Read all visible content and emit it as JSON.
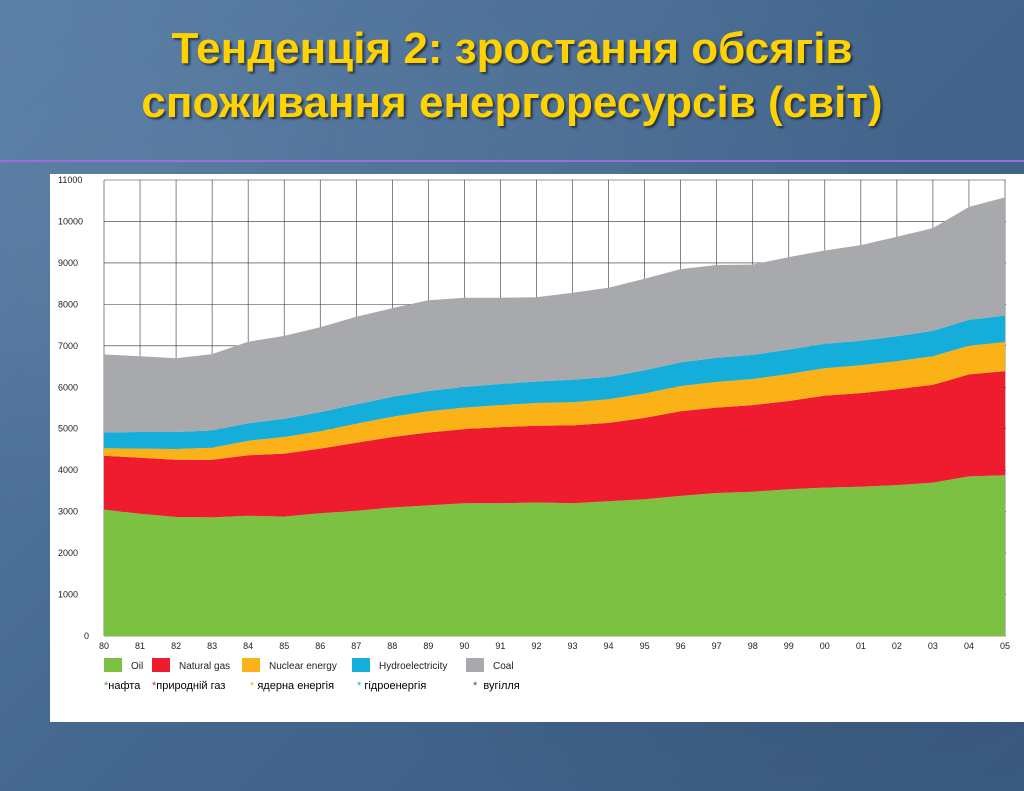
{
  "slide": {
    "title_line1": "Тенденція 2: зростання обсягів",
    "title_line2": "споживання енергоресурсів (світ)"
  },
  "colors": {
    "title": "#ffd200",
    "oil": "#7dc142",
    "natural_gas": "#ee1c2e",
    "nuclear": "#fbb217",
    "hydro": "#15aedb",
    "coal": "#a7a9ac",
    "note_asterisk_oil": "#3aa52b",
    "note_asterisk_gas": "#ee1c2e",
    "note_asterisk_nuclear": "#fbb217",
    "note_asterisk_hydro": "#15aedb",
    "note_asterisk_coal": "#555555"
  },
  "chart_data": {
    "type": "area",
    "stacked": true,
    "x": [
      "80",
      "81",
      "82",
      "83",
      "84",
      "85",
      "86",
      "87",
      "88",
      "89",
      "90",
      "91",
      "92",
      "93",
      "94",
      "95",
      "96",
      "97",
      "98",
      "99",
      "00",
      "01",
      "02",
      "03",
      "04",
      "05"
    ],
    "yticks": [
      "0",
      "1000",
      "2000",
      "3000",
      "4000",
      "5000",
      "6000",
      "7000",
      "8000",
      "9000",
      "10000",
      "11000"
    ],
    "ylim": [
      0,
      11000
    ],
    "grid": true,
    "legend_position": "bottom-left",
    "series": [
      {
        "name": "Oil",
        "values": [
          3050,
          2950,
          2870,
          2860,
          2900,
          2880,
          2960,
          3020,
          3100,
          3150,
          3200,
          3200,
          3220,
          3200,
          3250,
          3300,
          3380,
          3450,
          3480,
          3540,
          3580,
          3600,
          3640,
          3700,
          3850,
          3880
        ]
      },
      {
        "name": "Natural gas",
        "values": [
          1300,
          1350,
          1380,
          1390,
          1460,
          1520,
          1560,
          1640,
          1700,
          1760,
          1790,
          1840,
          1850,
          1880,
          1890,
          1960,
          2040,
          2060,
          2090,
          2130,
          2220,
          2260,
          2310,
          2360,
          2460,
          2510
        ]
      },
      {
        "name": "Nuclear energy",
        "values": [
          180,
          220,
          260,
          290,
          350,
          400,
          420,
          460,
          490,
          510,
          520,
          530,
          550,
          560,
          570,
          590,
          610,
          620,
          630,
          650,
          660,
          670,
          680,
          690,
          690,
          700
        ]
      },
      {
        "name": "Hydroelectricity",
        "values": [
          380,
          400,
          410,
          420,
          420,
          440,
          460,
          470,
          480,
          490,
          500,
          510,
          520,
          540,
          540,
          560,
          570,
          580,
          580,
          590,
          590,
          590,
          600,
          610,
          630,
          640
        ]
      },
      {
        "name": "Coal",
        "values": [
          1880,
          1830,
          1780,
          1840,
          1970,
          2000,
          2050,
          2110,
          2140,
          2190,
          2150,
          2080,
          2030,
          2100,
          2150,
          2210,
          2250,
          2240,
          2180,
          2230,
          2250,
          2310,
          2400,
          2480,
          2720,
          2850
        ]
      }
    ]
  },
  "notes": {
    "oil": "нафта",
    "natural_gas": "природній газ",
    "nuclear": "ядерна енергія",
    "hydro": "гідроенергія",
    "coal": "вугілля",
    "asterisk": "*"
  }
}
